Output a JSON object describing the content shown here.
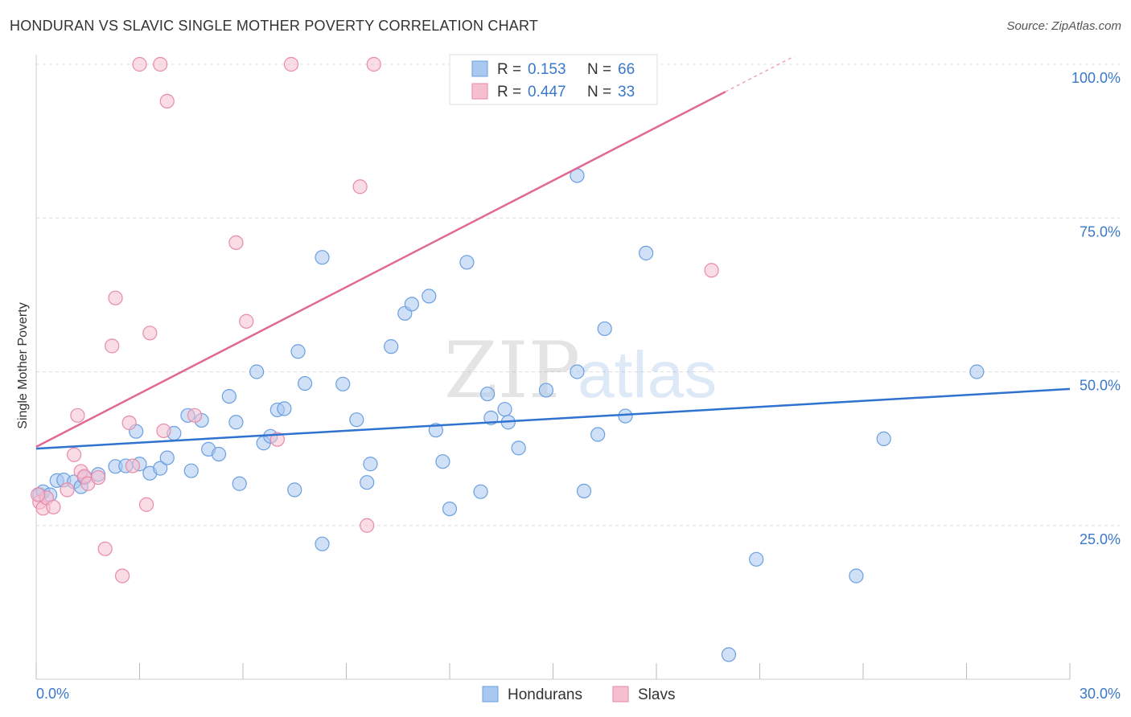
{
  "header": {
    "title": "HONDURAN VS SLAVIC SINGLE MOTHER POVERTY CORRELATION CHART",
    "source": "Source: ZipAtlas.com"
  },
  "watermark": {
    "zip": "ZIP",
    "atlas": "atlas"
  },
  "legend_top": [
    {
      "r_label": "R =",
      "r_value": "0.153",
      "n_label": "N =",
      "n_value": "66",
      "color": "#a9c8f0",
      "stroke": "#6a9fe0"
    },
    {
      "r_label": "R =",
      "r_value": "0.447",
      "n_label": "N =",
      "n_value": "33",
      "color": "#f6bfd0",
      "stroke": "#e88aa9"
    }
  ],
  "legend_bottom": [
    {
      "label": "Hondurans",
      "color": "#a9c8f0",
      "stroke": "#6a9fe0"
    },
    {
      "label": "Slavs",
      "color": "#f6bfd0",
      "stroke": "#e88aa9"
    }
  ],
  "chart_data": {
    "type": "scatter",
    "title": "HONDURAN VS SLAVIC SINGLE MOTHER POVERTY CORRELATION CHART",
    "xlabel": "",
    "ylabel": "Single Mother Poverty",
    "xlim": [
      0,
      30
    ],
    "ylim": [
      0,
      102
    ],
    "x_tick_labels": [
      "0.0%",
      "30.0%"
    ],
    "y_ticks": [
      25,
      50,
      75,
      100
    ],
    "y_tick_labels": [
      "25.0%",
      "50.0%",
      "75.0%",
      "100.0%"
    ],
    "grid": true,
    "legend_position": "top-center",
    "series": [
      {
        "name": "Hondurans",
        "color": "#a9c8f0",
        "stroke": "#6a9fe0",
        "line_color": "#2f72d0",
        "trend": {
          "x": [
            0,
            30
          ],
          "y": [
            37.5,
            47.2
          ]
        },
        "points": [
          [
            0.1,
            30.0
          ],
          [
            0.2,
            30.5
          ],
          [
            0.4,
            30.0
          ],
          [
            0.6,
            32.3
          ],
          [
            0.8,
            32.4
          ],
          [
            1.1,
            32.1
          ],
          [
            1.3,
            31.3
          ],
          [
            1.4,
            32.8
          ],
          [
            1.8,
            33.3
          ],
          [
            2.3,
            34.6
          ],
          [
            2.6,
            34.7
          ],
          [
            2.9,
            40.3
          ],
          [
            3.0,
            35.0
          ],
          [
            3.3,
            33.5
          ],
          [
            3.6,
            34.3
          ],
          [
            3.8,
            36.0
          ],
          [
            4.0,
            40.0
          ],
          [
            4.4,
            42.9
          ],
          [
            4.5,
            33.9
          ],
          [
            4.8,
            42.1
          ],
          [
            5.0,
            37.4
          ],
          [
            5.3,
            36.6
          ],
          [
            5.6,
            46.0
          ],
          [
            5.8,
            41.8
          ],
          [
            5.9,
            31.8
          ],
          [
            6.4,
            50.0
          ],
          [
            6.6,
            38.4
          ],
          [
            6.8,
            39.5
          ],
          [
            7.0,
            43.8
          ],
          [
            7.2,
            44.0
          ],
          [
            7.5,
            30.8
          ],
          [
            7.6,
            53.3
          ],
          [
            7.8,
            48.1
          ],
          [
            8.3,
            68.6
          ],
          [
            8.3,
            22.0
          ],
          [
            8.9,
            48.0
          ],
          [
            9.3,
            42.2
          ],
          [
            9.6,
            32.0
          ],
          [
            9.7,
            35.0
          ],
          [
            10.3,
            54.1
          ],
          [
            10.7,
            59.5
          ],
          [
            10.9,
            61.0
          ],
          [
            11.4,
            62.3
          ],
          [
            11.6,
            40.5
          ],
          [
            11.8,
            35.4
          ],
          [
            12.0,
            27.7
          ],
          [
            12.5,
            67.8
          ],
          [
            12.9,
            30.5
          ],
          [
            13.1,
            46.4
          ],
          [
            13.2,
            42.5
          ],
          [
            13.6,
            43.9
          ],
          [
            13.7,
            41.8
          ],
          [
            14.0,
            37.6
          ],
          [
            14.8,
            47.0
          ],
          [
            15.7,
            81.9
          ],
          [
            15.7,
            50.0
          ],
          [
            15.9,
            30.6
          ],
          [
            16.3,
            39.8
          ],
          [
            16.5,
            57.0
          ],
          [
            17.1,
            42.8
          ],
          [
            17.7,
            69.3
          ],
          [
            20.1,
            4.0
          ],
          [
            20.9,
            19.5
          ],
          [
            23.8,
            16.8
          ],
          [
            24.6,
            39.1
          ],
          [
            27.3,
            50.0
          ]
        ]
      },
      {
        "name": "Slavs",
        "color": "#f6bfd0",
        "stroke": "#e88aa9",
        "line_color": "#e06a93",
        "trend": {
          "x": [
            0,
            22
          ],
          "y": [
            37.8,
            101.3
          ]
        },
        "points": [
          [
            0.1,
            28.8
          ],
          [
            0.2,
            27.8
          ],
          [
            0.3,
            29.5
          ],
          [
            0.5,
            28.0
          ],
          [
            0.9,
            30.8
          ],
          [
            1.1,
            36.5
          ],
          [
            1.2,
            42.9
          ],
          [
            1.3,
            33.8
          ],
          [
            1.4,
            33.0
          ],
          [
            1.5,
            31.8
          ],
          [
            1.8,
            32.8
          ],
          [
            2.0,
            21.2
          ],
          [
            2.2,
            54.2
          ],
          [
            2.3,
            62.0
          ],
          [
            2.5,
            16.8
          ],
          [
            2.7,
            41.7
          ],
          [
            2.8,
            34.7
          ],
          [
            3.0,
            100.0
          ],
          [
            3.2,
            28.4
          ],
          [
            3.3,
            56.3
          ],
          [
            3.6,
            100.0
          ],
          [
            3.7,
            40.4
          ],
          [
            3.8,
            94.0
          ],
          [
            4.6,
            42.9
          ],
          [
            5.8,
            71.0
          ],
          [
            6.1,
            58.2
          ],
          [
            7.0,
            39.0
          ],
          [
            7.4,
            100.0
          ],
          [
            9.4,
            80.1
          ],
          [
            9.6,
            25.0
          ],
          [
            9.8,
            100.0
          ],
          [
            19.6,
            66.5
          ],
          [
            0.05,
            30.0
          ]
        ]
      }
    ]
  }
}
